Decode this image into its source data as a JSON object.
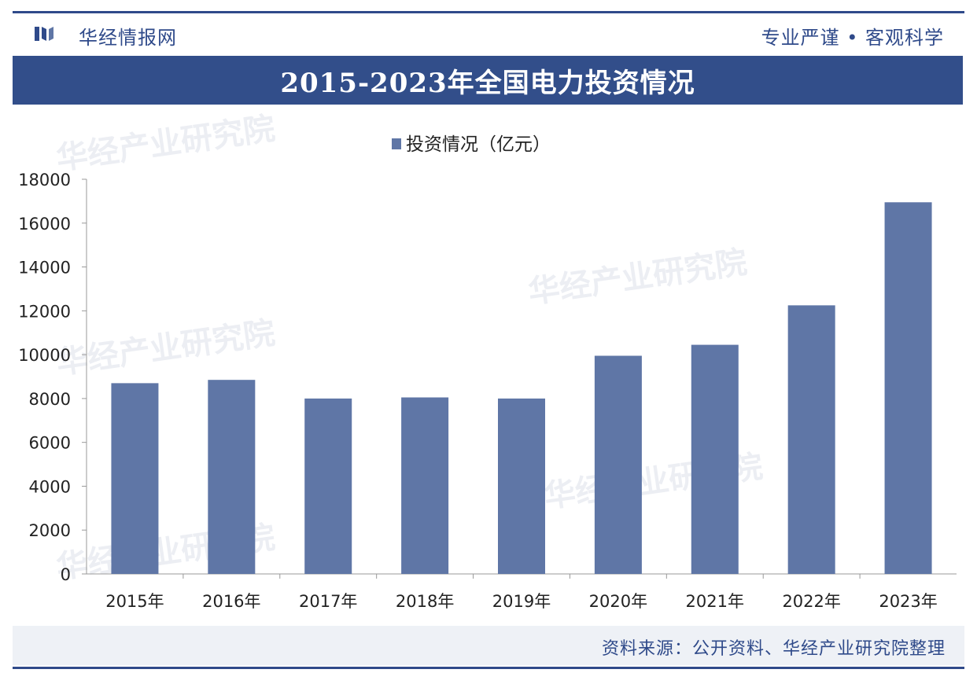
{
  "header": {
    "brand": "华经情报网",
    "slogan": "专业严谨 • 客观科学",
    "title": "2015-2023年全国电力投资情况"
  },
  "watermark_text": "华经产业研究院",
  "source": "资料来源：公开资料、华经产业研究院整理",
  "colors": {
    "bar": "#5f76a6",
    "brand": "#2f4a8a",
    "title_bg": "#324e8a"
  },
  "chart_data": {
    "type": "bar",
    "categories": [
      "2015年",
      "2016年",
      "2017年",
      "2018年",
      "2019年",
      "2020年",
      "2021年",
      "2022年",
      "2023年"
    ],
    "series": [
      {
        "name": "投资情况（亿元）",
        "values": [
          8700,
          8850,
          8000,
          8050,
          8000,
          9950,
          10450,
          12250,
          16950
        ]
      }
    ],
    "ylim": [
      0,
      18000
    ],
    "yticks": [
      0,
      2000,
      4000,
      6000,
      8000,
      10000,
      12000,
      14000,
      16000,
      18000
    ],
    "legend": "top-center",
    "grid": false
  }
}
